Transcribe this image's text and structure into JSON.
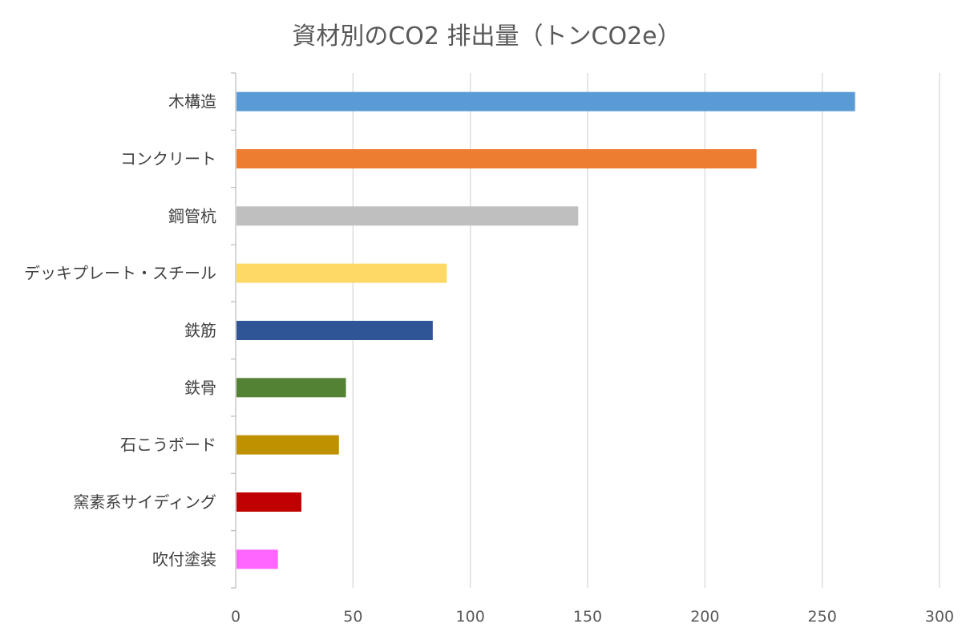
{
  "chart_data": {
    "type": "bar",
    "orientation": "horizontal",
    "title": "資材別のCO2 排出量（トンCO2e）",
    "xlabel": "",
    "ylabel": "",
    "xlim": [
      0,
      300
    ],
    "ticks": [
      0,
      50,
      100,
      150,
      200,
      250,
      300
    ],
    "grid": true,
    "legend": "none",
    "categories": [
      "木構造",
      "コンクリート",
      "鋼管杭",
      "デッキプレート・スチール",
      "鉄筋",
      "鉄骨",
      "石こうボード",
      "窯素系サイディング",
      "吹付塗装"
    ],
    "values": [
      264,
      222,
      146,
      90,
      84,
      47,
      44,
      28,
      18
    ],
    "colors": [
      "#5b9bd5",
      "#ed7d31",
      "#bfbfbf",
      "#ffd966",
      "#2f5597",
      "#548235",
      "#bf9000",
      "#c00000",
      "#ff66ff"
    ]
  }
}
